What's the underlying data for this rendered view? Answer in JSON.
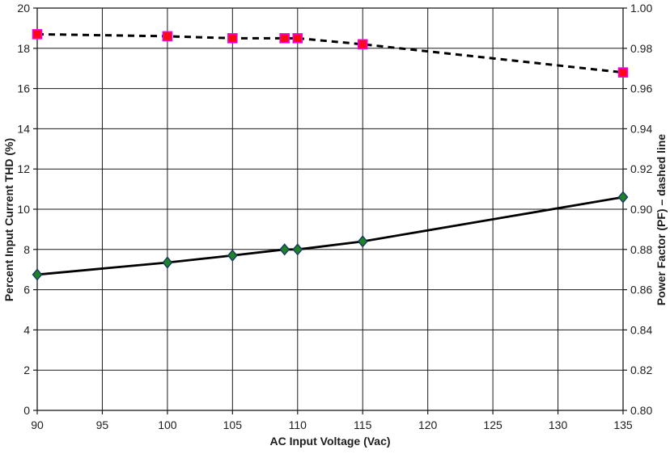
{
  "chart_data": {
    "type": "line",
    "title": "",
    "xlabel": "AC Input Voltage (Vac)",
    "ylabel_left": "Percent Input Current THD (%)",
    "ylabel_right": "Power Factor (PF) – dashed line",
    "x": [
      90,
      100,
      105,
      109,
      110,
      115,
      135
    ],
    "series": [
      {
        "id": "thd",
        "name": "Percent Input Current THD",
        "axis": "left",
        "values": [
          6.75,
          7.35,
          7.7,
          8.0,
          8.0,
          8.4,
          10.6
        ],
        "line_style": "solid",
        "line_color": "#000000",
        "line_width": 2.8,
        "marker": "diamond",
        "marker_fill": "#1e8229",
        "marker_stroke": "#17375e"
      },
      {
        "id": "pf",
        "name": "Power Factor (PF)",
        "axis": "right",
        "values": [
          0.987,
          0.986,
          0.985,
          0.985,
          0.985,
          0.982,
          0.968
        ],
        "line_style": "dashed",
        "line_color": "#000000",
        "line_width": 3,
        "marker": "square",
        "marker_fill": "#fb0a14",
        "marker_stroke": "#ee00ee"
      }
    ],
    "x_axis": {
      "min": 90,
      "max": 135,
      "ticks": [
        "90",
        "95",
        "100",
        "105",
        "110",
        "115",
        "120",
        "125",
        "130",
        "135"
      ]
    },
    "y_left_axis": {
      "min": 0,
      "max": 20,
      "ticks": [
        "0",
        "2",
        "4",
        "6",
        "8",
        "10",
        "12",
        "14",
        "16",
        "18",
        "20"
      ]
    },
    "y_right_axis": {
      "min": 0.8,
      "max": 1.0,
      "ticks": [
        "0.80",
        "0.82",
        "0.84",
        "0.86",
        "0.88",
        "0.90",
        "0.92",
        "0.94",
        "0.96",
        "0.98",
        "1.00"
      ]
    },
    "grid": true,
    "legend": "none",
    "colors": {
      "grid": "#1a1a1a",
      "border": "#1a1a1a",
      "text": "#1d1d1d"
    }
  }
}
